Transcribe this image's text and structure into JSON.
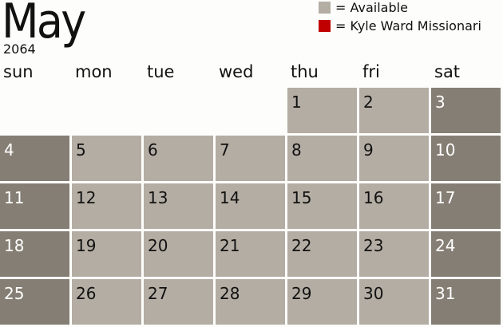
{
  "header": {
    "month": "May",
    "year": "2064"
  },
  "legend": [
    {
      "label": "= Available",
      "color": "#b4ada4"
    },
    {
      "label": "= Kyle Ward Missionari",
      "color": "#c00000"
    }
  ],
  "days_of_week": [
    "sun",
    "mon",
    "tue",
    "wed",
    "thu",
    "fri",
    "sat"
  ],
  "colors": {
    "weekday": "#b4ada4",
    "weekend": "#857e74"
  },
  "first_weekday_index": 4,
  "days": [
    "1",
    "2",
    "3",
    "4",
    "5",
    "6",
    "7",
    "8",
    "9",
    "10",
    "11",
    "12",
    "13",
    "14",
    "15",
    "16",
    "17",
    "18",
    "19",
    "20",
    "21",
    "22",
    "23",
    "24",
    "25",
    "26",
    "27",
    "28",
    "29",
    "30",
    "31"
  ]
}
